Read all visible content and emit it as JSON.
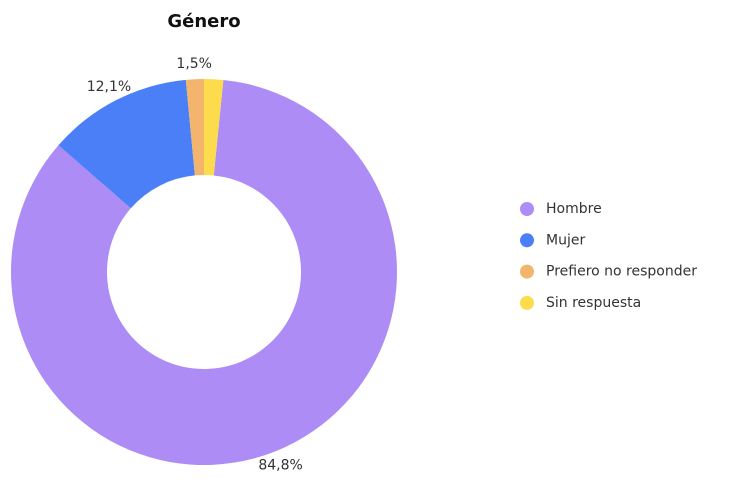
{
  "chart_data": {
    "type": "donut",
    "title": "Género",
    "categories": [
      "Hombre",
      "Mujer",
      "Prefiero no responder",
      "Sin respuesta"
    ],
    "values": [
      84.8,
      12.1,
      1.5,
      1.6
    ],
    "value_labels": [
      "84,8%",
      "12,1%",
      "1,5%",
      null
    ],
    "colors": [
      "#ad8cf5",
      "#4b7ff7",
      "#f2b56b",
      "#fcdc4d"
    ],
    "legend": "right"
  }
}
